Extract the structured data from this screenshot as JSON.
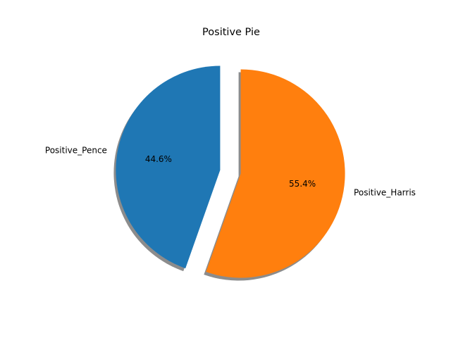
{
  "chart_data": {
    "type": "pie",
    "title": "Positive Pie",
    "labels": [
      "Positive_Pence",
      "Positive_Harris"
    ],
    "values": [
      44.6,
      55.4
    ],
    "percent_labels": [
      "44.6%",
      "55.4%"
    ],
    "colors": [
      "#1f77b4",
      "#ff7f0e"
    ],
    "explode": [
      0.1,
      0.1
    ],
    "start_angle_deg": 90,
    "direction": "counterclockwise",
    "shadow": true
  }
}
